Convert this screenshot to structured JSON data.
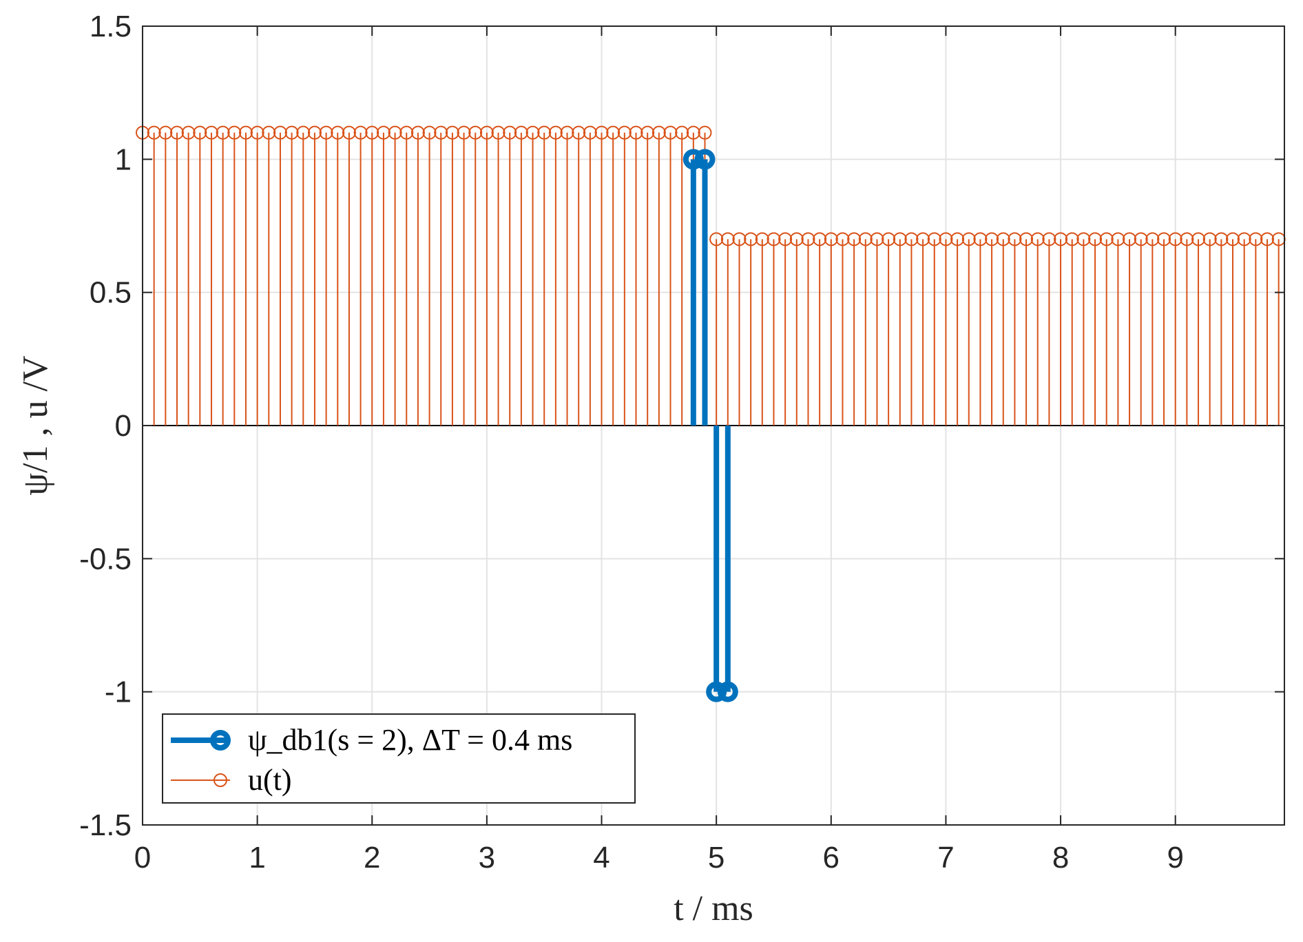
{
  "chart_data": {
    "type": "stem",
    "xlabel": "t / ms",
    "ylabel": "ψ/1 , u /V",
    "xlim": [
      0,
      9.95
    ],
    "ylim": [
      -1.5,
      1.5
    ],
    "xticks": [
      "0",
      "1",
      "2",
      "3",
      "4",
      "5",
      "6",
      "7",
      "8",
      "9"
    ],
    "yticks": [
      "1.5",
      "1",
      "0.5",
      "0",
      "-0.5",
      "-1",
      "-1.5"
    ],
    "grid": true,
    "legend_position": "bottom-left",
    "series": [
      {
        "name": "ψ_db1(s = 2), ΔT = 0.4 ms",
        "color": "#0072BD",
        "x": [
          4.8,
          4.9,
          5.0,
          5.1
        ],
        "y": [
          1,
          1,
          -1,
          -1
        ]
      },
      {
        "name": "u(t)",
        "color": "#D95319",
        "sampling_interval": 0.1,
        "segments": [
          {
            "x_start": 0.0,
            "x_end": 4.9,
            "y": 1.1
          },
          {
            "x_start": 5.0,
            "x_end": 9.9,
            "y": 0.7
          }
        ]
      }
    ]
  }
}
